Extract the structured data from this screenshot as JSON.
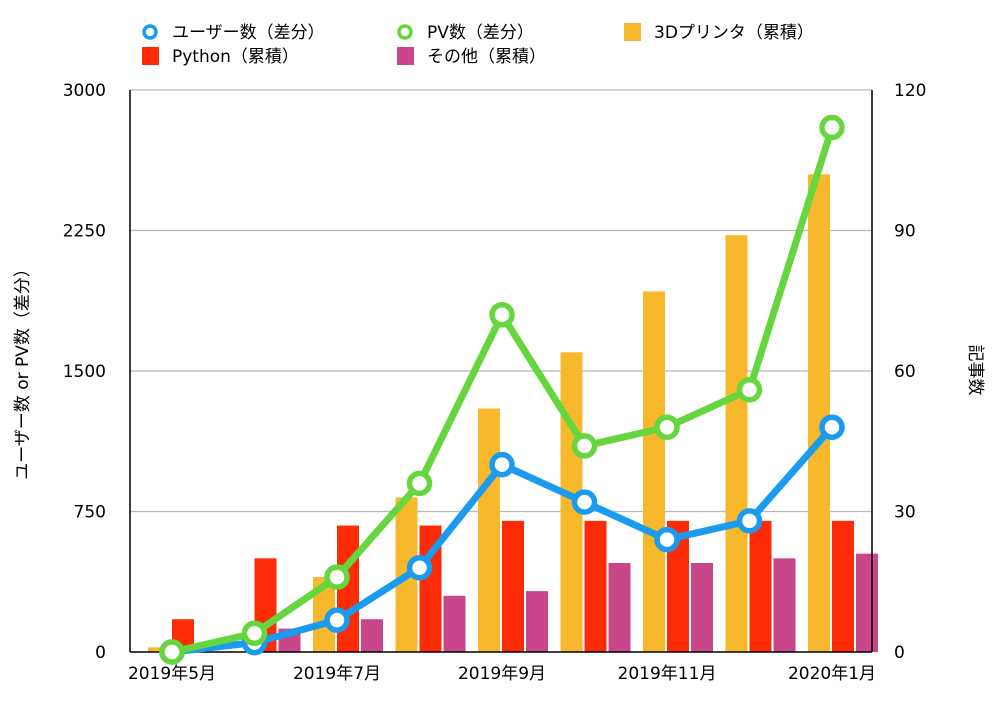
{
  "chart_data": {
    "type": "bar+line",
    "legend": [
      {
        "label": "ユーザー数（差分）",
        "kind": "line",
        "color": "#1a9bef"
      },
      {
        "label": "PV数（差分）",
        "kind": "line",
        "color": "#66d63f"
      },
      {
        "label": "3Dプリンタ（累積）",
        "kind": "bar",
        "color": "#f7b92b"
      },
      {
        "label": "Python（累積）",
        "kind": "bar",
        "color": "#fd2b06"
      },
      {
        "label": "その他（累積）",
        "kind": "bar",
        "color": "#c9468a"
      }
    ],
    "y_left_label": "ユーザー数 or PV数（差分）",
    "y_right_label": "記事数",
    "y_left_ticks": [
      "0",
      "750",
      "1500",
      "2250",
      "3000"
    ],
    "y_right_ticks": [
      "0",
      "30",
      "60",
      "90",
      "120"
    ],
    "y_left_lim": [
      0,
      3000
    ],
    "y_right_lim": [
      0,
      120
    ],
    "x_tick_labels": [
      "2019年5月",
      "2019年7月",
      "2019年9月",
      "2019年11月",
      "2020年1月"
    ],
    "x_tick_months": [
      0,
      2,
      4,
      6,
      8
    ],
    "months": [
      "2019-05",
      "2019-06",
      "2019-07",
      "2019-08",
      "2019-09",
      "2019-10",
      "2019-11",
      "2019-12",
      "2020-01"
    ],
    "bar_series": [
      {
        "name": "3Dプリンタ（累積）",
        "color": "#f7b92b",
        "values": [
          1,
          0,
          16,
          33,
          52,
          64,
          77,
          89,
          102
        ]
      },
      {
        "name": "Python（累積）",
        "color": "#fd2b06",
        "values": [
          7,
          20,
          27,
          27,
          28,
          28,
          28,
          28,
          28
        ]
      },
      {
        "name": "その他（累積）",
        "color": "#c9468a",
        "values": [
          0,
          5,
          7,
          12,
          13,
          19,
          19,
          20,
          21
        ]
      }
    ],
    "line_series": [
      {
        "name": "ユーザー数（差分）",
        "color": "#1a9bef",
        "values": [
          0,
          50,
          170,
          450,
          1000,
          800,
          600,
          700,
          1200
        ]
      },
      {
        "name": "PV数（差分）",
        "color": "#66d63f",
        "values": [
          0,
          100,
          400,
          900,
          1800,
          1100,
          1200,
          1400,
          2800
        ]
      }
    ],
    "grid": true
  }
}
